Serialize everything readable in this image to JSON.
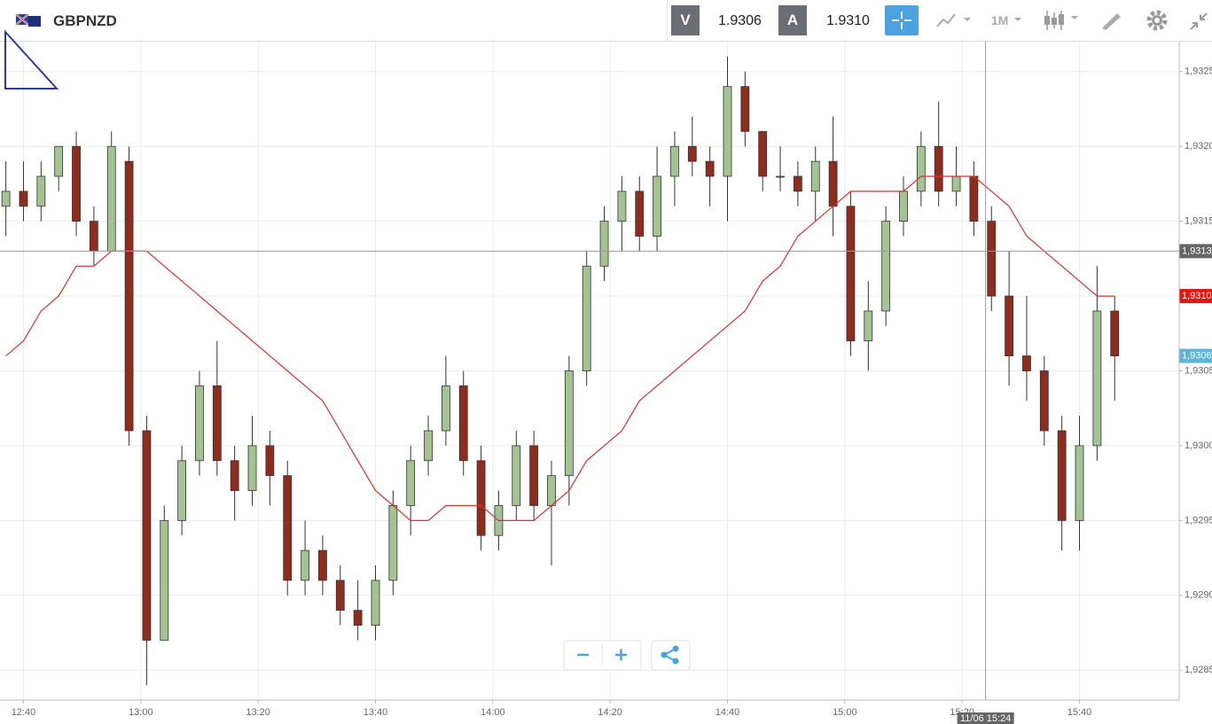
{
  "header": {
    "symbol": "GBPNZD",
    "bid_label": "V",
    "bid": "1.9306",
    "ask_label": "A",
    "ask": "1.9310",
    "timeframe": "1M"
  },
  "chart_data": {
    "type": "candlestick",
    "up_color": "#a4c393",
    "down_color": "#8e2c1d",
    "x": [
      "12:37",
      "12:40",
      "12:43",
      "12:46",
      "12:49",
      "12:52",
      "12:55",
      "12:58",
      "13:01",
      "13:04",
      "13:07",
      "13:10",
      "13:13",
      "13:16",
      "13:19",
      "13:22",
      "13:25",
      "13:28",
      "13:31",
      "13:34",
      "13:37",
      "13:40",
      "13:43",
      "13:46",
      "13:49",
      "13:52",
      "13:55",
      "13:58",
      "14:01",
      "14:04",
      "14:07",
      "14:10",
      "14:13",
      "14:16",
      "14:19",
      "14:22",
      "14:25",
      "14:28",
      "14:31",
      "14:34",
      "14:37",
      "14:40",
      "14:43",
      "14:46",
      "14:49",
      "14:52",
      "14:55",
      "14:58",
      "15:01",
      "15:04",
      "15:07",
      "15:10",
      "15:13",
      "15:16",
      "15:19",
      "15:22",
      "15:25",
      "15:28",
      "15:31",
      "15:34",
      "15:37",
      "15:40",
      "15:43",
      "15:46"
    ],
    "open": [
      1.9316,
      1.9317,
      1.9316,
      1.9318,
      1.932,
      1.9315,
      1.9313,
      1.9319,
      1.9301,
      1.9287,
      1.9295,
      1.9299,
      1.9304,
      1.9299,
      1.9297,
      1.93,
      1.9298,
      1.9291,
      1.9293,
      1.9291,
      1.9289,
      1.9288,
      1.9291,
      1.9296,
      1.9299,
      1.9301,
      1.9304,
      1.9299,
      1.9294,
      1.9296,
      1.93,
      1.9296,
      1.9298,
      1.9305,
      1.9312,
      1.9315,
      1.9317,
      1.9314,
      1.9318,
      1.932,
      1.9319,
      1.9318,
      1.9324,
      1.9321,
      1.9318,
      1.9318,
      1.9317,
      1.9319,
      1.9316,
      1.9307,
      1.9309,
      1.9315,
      1.9317,
      1.932,
      1.9317,
      1.9318,
      1.9315,
      1.931,
      1.9306,
      1.9305,
      1.9301,
      1.9295,
      1.93,
      1.9309
    ],
    "high": [
      1.9319,
      1.9319,
      1.9319,
      1.932,
      1.9321,
      1.9316,
      1.9321,
      1.932,
      1.9302,
      1.9296,
      1.93,
      1.9305,
      1.9307,
      1.93,
      1.9302,
      1.9301,
      1.9299,
      1.9295,
      1.9294,
      1.9292,
      1.9291,
      1.9292,
      1.9297,
      1.93,
      1.9302,
      1.9306,
      1.9305,
      1.93,
      1.9297,
      1.9301,
      1.9301,
      1.9299,
      1.9306,
      1.9313,
      1.9316,
      1.9318,
      1.9318,
      1.932,
      1.9321,
      1.9322,
      1.932,
      1.9326,
      1.9325,
      1.9321,
      1.932,
      1.9319,
      1.932,
      1.9322,
      1.9317,
      1.9311,
      1.9316,
      1.9318,
      1.9321,
      1.9323,
      1.932,
      1.9319,
      1.9316,
      1.9313,
      1.931,
      1.9306,
      1.9302,
      1.9302,
      1.9312,
      1.931
    ],
    "low": [
      1.9314,
      1.9315,
      1.9315,
      1.9317,
      1.9314,
      1.9312,
      1.9313,
      1.93,
      1.9284,
      1.9287,
      1.9294,
      1.9298,
      1.9298,
      1.9295,
      1.9296,
      1.9296,
      1.929,
      1.929,
      1.929,
      1.9288,
      1.9287,
      1.9287,
      1.929,
      1.9294,
      1.9298,
      1.93,
      1.9298,
      1.9293,
      1.9293,
      1.9295,
      1.9295,
      1.9292,
      1.9296,
      1.9304,
      1.9311,
      1.9313,
      1.9313,
      1.9313,
      1.9316,
      1.9318,
      1.9316,
      1.9315,
      1.932,
      1.9317,
      1.9317,
      1.9316,
      1.9315,
      1.9314,
      1.9306,
      1.9305,
      1.9308,
      1.9314,
      1.9316,
      1.9316,
      1.9316,
      1.9314,
      1.9309,
      1.9304,
      1.9303,
      1.93,
      1.9293,
      1.9293,
      1.9299,
      1.9303
    ],
    "close": [
      1.9317,
      1.9316,
      1.9318,
      1.932,
      1.9315,
      1.9313,
      1.932,
      1.9301,
      1.9287,
      1.9295,
      1.9299,
      1.9304,
      1.9299,
      1.9297,
      1.93,
      1.9298,
      1.9291,
      1.9293,
      1.9291,
      1.9289,
      1.9288,
      1.9291,
      1.9296,
      1.9299,
      1.9301,
      1.9304,
      1.9299,
      1.9294,
      1.9296,
      1.93,
      1.9296,
      1.9298,
      1.9305,
      1.9312,
      1.9315,
      1.9317,
      1.9314,
      1.9318,
      1.932,
      1.9319,
      1.9318,
      1.9324,
      1.9321,
      1.9318,
      1.9318,
      1.9317,
      1.9319,
      1.9316,
      1.9307,
      1.9309,
      1.9315,
      1.9317,
      1.932,
      1.9317,
      1.9318,
      1.9315,
      1.931,
      1.9306,
      1.9305,
      1.9301,
      1.9295,
      1.93,
      1.9309,
      1.9306
    ],
    "ma": {
      "color": "#d9322a",
      "values": [
        1.9306,
        1.9307,
        1.9309,
        1.931,
        1.9312,
        1.9312,
        1.9313,
        1.9313,
        1.9313,
        1.9312,
        1.9311,
        1.931,
        1.9309,
        1.9308,
        1.9307,
        1.9306,
        1.9305,
        1.9304,
        1.9303,
        1.9301,
        1.9299,
        1.9297,
        1.9296,
        1.9295,
        1.9295,
        1.9296,
        1.9296,
        1.9296,
        1.9295,
        1.9295,
        1.9295,
        1.9296,
        1.9297,
        1.9299,
        1.93,
        1.9301,
        1.9303,
        1.9304,
        1.9305,
        1.9306,
        1.9307,
        1.9308,
        1.9309,
        1.9311,
        1.9312,
        1.9314,
        1.9315,
        1.9316,
        1.9317,
        1.9317,
        1.9317,
        1.9317,
        1.9318,
        1.9318,
        1.9318,
        1.9318,
        1.9317,
        1.9316,
        1.9314,
        1.9313,
        1.9312,
        1.9311,
        1.931,
        1.931
      ]
    },
    "xlim": [
      "12:36",
      "15:57"
    ],
    "xticks": [
      "12:40",
      "13:00",
      "13:20",
      "13:40",
      "14:00",
      "14:20",
      "14:40",
      "15:00",
      "15:20",
      "15:40"
    ],
    "ylim": [
      1.9283,
      1.9327
    ],
    "yticks": [
      {
        "value": 1.9285,
        "label": "1,9285"
      },
      {
        "value": 1.929,
        "label": "1,9290"
      },
      {
        "value": 1.9295,
        "label": "1,9295"
      },
      {
        "value": 1.93,
        "label": "1,9300"
      },
      {
        "value": 1.9305,
        "label": "1,9305"
      },
      {
        "value": 1.931,
        "label": "1,9310"
      },
      {
        "value": 1.9315,
        "label": "1,9315"
      },
      {
        "value": 1.932,
        "label": "1,9320"
      },
      {
        "value": 1.9325,
        "label": "1,9325"
      }
    ],
    "grid": true,
    "crosshair": {
      "time_label": "11/06 15:24",
      "price": {
        "value": 1.9313,
        "label": "1,9313"
      }
    },
    "price_tags": [
      {
        "value": 1.931,
        "label": "1,9310",
        "color": "#e8150c"
      },
      {
        "value": 1.9306,
        "label": "1,9306",
        "color": "#5bb5d9"
      }
    ]
  }
}
